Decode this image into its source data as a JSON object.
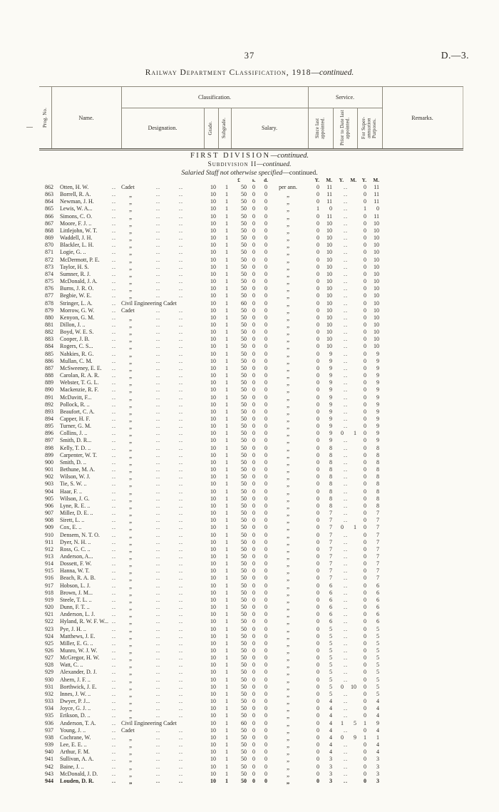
{
  "page": {
    "number": "37",
    "doc_ref": "D.—3."
  },
  "title": {
    "main": "Railway Department Classification, 1918",
    "dash": "—",
    "cont": "continued."
  },
  "table_header": {
    "prog_no": "Prog. No.",
    "name": "Name.",
    "classification": "Classification.",
    "service": "Service.",
    "designation": "Designation.",
    "grade": "Grade.",
    "subgrade": "Subgrade.",
    "salary": "Salary.",
    "since_last_appointed": "Since last appointed.",
    "prior_to_date_last_appointed": "Prior to Date last appointed.",
    "for_superannuation_purposes": "For Super- annuation Purposes.",
    "remarks": "Remarks."
  },
  "sections": {
    "division": "FIRST DIVISION",
    "division_cont": "—continued.",
    "subdivision": "Subdivision II",
    "subdivision_cont": "—continued.",
    "staff": "Salaried Staff not otherwise specified",
    "staff_cont": "—continued."
  },
  "units": {
    "pounds": "£",
    "shillings": "s.",
    "pence": "d.",
    "year": "Y.",
    "month": "M."
  },
  "leaders": "..",
  "rows": [
    [
      "862",
      "Otten, H. W.",
      "Cadet",
      "10",
      "1",
      "50",
      "0",
      "0",
      "per ann.",
      "0 11",
      "..",
      "0 11"
    ],
    [
      "863",
      "Borrell, R. A.",
      "„",
      "10",
      "1",
      "50",
      "0",
      "0",
      "„",
      "0 11",
      "..",
      "0 11"
    ],
    [
      "864",
      "Newman, J. H.",
      "„",
      "10",
      "1",
      "50",
      "0",
      "0",
      "„",
      "0 11",
      "..",
      "0 11"
    ],
    [
      "865",
      "Lewis, W. A...",
      "„",
      "10",
      "1",
      "50",
      "0",
      "0",
      "„",
      "1 0",
      "..",
      "1 0"
    ],
    [
      "866",
      "Simons, C. O.",
      "„",
      "10",
      "1",
      "50",
      "0",
      "0",
      "„",
      "0 11",
      "..",
      "0 11"
    ],
    [
      "867",
      "Moore, F. J. ..",
      "„",
      "10",
      "1",
      "50",
      "0",
      "0",
      "„",
      "0 10",
      "..",
      "0 10"
    ],
    [
      "868",
      "Littlejohn, W. T.",
      "„",
      "10",
      "1",
      "50",
      "0",
      "0",
      "„",
      "0 10",
      "..",
      "0 10"
    ],
    [
      "869",
      "Waddell, J. H.",
      "„",
      "10",
      "1",
      "50",
      "0",
      "0",
      "„",
      "0 10",
      "..",
      "0 10"
    ],
    [
      "870",
      "Blackler, L. H.",
      "„",
      "10",
      "1",
      "50",
      "0",
      "0",
      "„",
      "0 10",
      "..",
      "0 10"
    ],
    [
      "871",
      "Logie, G. ..",
      "„",
      "10",
      "1",
      "50",
      "0",
      "0",
      "„",
      "0 10",
      "..",
      "0 10"
    ],
    [
      "872",
      "McDermott, P. E.",
      "„",
      "10",
      "1",
      "50",
      "0",
      "0",
      "„",
      "0 10",
      "..",
      "0 10"
    ],
    [
      "873",
      "Taylor, H. S.",
      "„",
      "10",
      "1",
      "50",
      "0",
      "0",
      "„",
      "0 10",
      "..",
      "0 10"
    ],
    [
      "874",
      "Sumner, R. J.",
      "„",
      "10",
      "1",
      "50",
      "0",
      "0",
      "„",
      "0 10",
      "..",
      "0 10"
    ],
    [
      "875",
      "McDonald, J. A.",
      "„",
      "10",
      "1",
      "50",
      "0",
      "0",
      "„",
      "0 10",
      "..",
      "0 10"
    ],
    [
      "876",
      "Burns, J. R. O.",
      "„",
      "10",
      "1",
      "50",
      "0",
      "0",
      "„",
      "0 10",
      "..",
      "0 10"
    ],
    [
      "877",
      "Begbie, W. E.",
      "„",
      "10",
      "1",
      "50",
      "0",
      "0",
      "„",
      "0 10",
      "..",
      "0 10"
    ],
    [
      "878",
      "Stringer, L. A.",
      "Civil Engineering Cadet",
      "10",
      "1",
      "60",
      "0",
      "0",
      "„",
      "0 10",
      "..",
      "0 10"
    ],
    [
      "879",
      "Morrow, G. W.",
      "Cadet",
      "10",
      "1",
      "50",
      "0",
      "0",
      "„",
      "0 10",
      "..",
      "0 10"
    ],
    [
      "880",
      "Kenyon, G. M.",
      "„",
      "10",
      "1",
      "50",
      "0",
      "0",
      "„",
      "0 10",
      "..",
      "0 10"
    ],
    [
      "881",
      "Dillon, J. ..",
      "„",
      "10",
      "1",
      "50",
      "0",
      "0",
      "„",
      "0 10",
      "..",
      "0 10"
    ],
    [
      "882",
      "Boyd, W. E. S.",
      "„",
      "10",
      "1",
      "50",
      "0",
      "0",
      "„",
      "0 10",
      "..",
      "0 10"
    ],
    [
      "883",
      "Cooper, J. B.",
      "„",
      "10",
      "1",
      "50",
      "0",
      "0",
      "„",
      "0 10",
      "..",
      "0 10"
    ],
    [
      "884",
      "Rogers, C. S...",
      "„",
      "10",
      "1",
      "50",
      "0",
      "0",
      "„",
      "0 10",
      "..",
      "0 10"
    ],
    [
      "885",
      "Nahkies, R. G.",
      "„",
      "10",
      "1",
      "50",
      "0",
      "0",
      "„",
      "0 9",
      "..",
      "0 9"
    ],
    [
      "886",
      "Mullan, C. M.",
      "„",
      "10",
      "1",
      "50",
      "0",
      "0",
      "„",
      "0 9",
      "..",
      "0 9"
    ],
    [
      "887",
      "McSweeney, E. E.",
      "„",
      "10",
      "1",
      "50",
      "0",
      "0",
      "„",
      "0 9",
      "..",
      "0 9"
    ],
    [
      "888",
      "Carolan, R. A. R.",
      "„",
      "10",
      "1",
      "50",
      "0",
      "0",
      "„",
      "0 9",
      "..",
      "0 9"
    ],
    [
      "889",
      "Webster, T. G. L.",
      "„",
      "10",
      "1",
      "50",
      "0",
      "0",
      "„",
      "0 9",
      "..",
      "0 9"
    ],
    [
      "890",
      "Mackenzie, R. F.",
      "„",
      "10",
      "1",
      "50",
      "0",
      "0",
      "„",
      "0 9",
      "..",
      "0 9"
    ],
    [
      "891",
      "McDavitt, F...",
      "„",
      "10",
      "1",
      "50",
      "0",
      "0",
      "„",
      "0 9",
      "..",
      "0 9"
    ],
    [
      "892",
      "Pollock, R. ..",
      "„",
      "10",
      "1",
      "50",
      "0",
      "0",
      "„",
      "0 9",
      "..",
      "0 9"
    ],
    [
      "893",
      "Beaufort, C. A.",
      "„",
      "10",
      "1",
      "50",
      "0",
      "0",
      "„",
      "0 9",
      "..",
      "0 9"
    ],
    [
      "894",
      "Capper, H. F.",
      "„",
      "10",
      "1",
      "50",
      "0",
      "0",
      "„",
      "0 9",
      "..",
      "0 9"
    ],
    [
      "895",
      "Turner, G. M.",
      "„",
      "10",
      "1",
      "50",
      "0",
      "0",
      "„",
      "0 9",
      "..",
      "0 9"
    ],
    [
      "896",
      "Collins, J. ..",
      "„",
      "10",
      "1",
      "50",
      "0",
      "0",
      "„",
      "0 9",
      "0 1",
      "0 9"
    ],
    [
      "897",
      "Smith, D. R...",
      "„",
      "10",
      "1",
      "50",
      "0",
      "0",
      "„",
      "0 9",
      "..",
      "0 9"
    ],
    [
      "898",
      "Kelly, T. D. ..",
      "„",
      "10",
      "1",
      "50",
      "0",
      "0",
      "„",
      "0 8",
      "..",
      "0 8"
    ],
    [
      "899",
      "Carpenter, W. T.",
      "„",
      "10",
      "1",
      "50",
      "0",
      "0",
      "„",
      "0 8",
      "..",
      "0 8"
    ],
    [
      "900",
      "Smith, D. ..",
      "„",
      "10",
      "1",
      "50",
      "0",
      "0",
      "„",
      "0 8",
      "..",
      "0 8"
    ],
    [
      "901",
      "Bethune, M. A.",
      "„",
      "10",
      "1",
      "50",
      "0",
      "0",
      "„",
      "0 8",
      "..",
      "0 8"
    ],
    [
      "902",
      "Wilson, W. J.",
      "„",
      "10",
      "1",
      "50",
      "0",
      "0",
      "„",
      "0 8",
      "..",
      "0 8"
    ],
    [
      "903",
      "Tie, S. W. ..",
      "„",
      "10",
      "1",
      "50",
      "0",
      "0",
      "„",
      "0 8",
      "..",
      "0 8"
    ],
    [
      "904",
      "Haar, F. ..",
      "„",
      "10",
      "1",
      "50",
      "0",
      "0",
      "„",
      "0 8",
      "..",
      "0 8"
    ],
    [
      "905",
      "Wilson, J. G.",
      "„",
      "10",
      "1",
      "50",
      "0",
      "0",
      "„",
      "0 8",
      "..",
      "0 8"
    ],
    [
      "906",
      "Lyne, R. E. ..",
      "„",
      "10",
      "1",
      "50",
      "0",
      "0",
      "„",
      "0 8",
      "..",
      "0 8"
    ],
    [
      "907",
      "Miller, D. E. ..",
      "„",
      "10",
      "1",
      "50",
      "0",
      "0",
      "„",
      "0 7",
      "..",
      "0 7"
    ],
    [
      "908",
      "Sirett, L. ..",
      "„",
      "10",
      "1",
      "50",
      "0",
      "0",
      "„",
      "0 7",
      "..",
      "0 7"
    ],
    [
      "909",
      "Cox, E. ..",
      "„",
      "10",
      "1",
      "50",
      "0",
      "0",
      "„",
      "0 7",
      "0 1",
      "0 7"
    ],
    [
      "910",
      "Densem, N. T. O.",
      "„",
      "10",
      "1",
      "50",
      "0",
      "0",
      "„",
      "0 7",
      "..",
      "0 7"
    ],
    [
      "911",
      "Dyer, N. H. ..",
      "„",
      "10",
      "1",
      "50",
      "0",
      "0",
      "„",
      "0 7",
      "..",
      "0 7"
    ],
    [
      "912",
      "Ross, G. C. ..",
      "„",
      "10",
      "1",
      "50",
      "0",
      "0",
      "„",
      "0 7",
      "..",
      "0 7"
    ],
    [
      "913",
      "Anderson, A...",
      "„",
      "10",
      "1",
      "50",
      "0",
      "0",
      "„",
      "0 7",
      "..",
      "0 7"
    ],
    [
      "914",
      "Dossett, F. W.",
      "„",
      "10",
      "1",
      "50",
      "0",
      "0",
      "„",
      "0 7",
      "..",
      "0 7"
    ],
    [
      "915",
      "Hanna, W. T.",
      "„",
      "10",
      "1",
      "50",
      "0",
      "0",
      "„",
      "0 7",
      "..",
      "0 7"
    ],
    [
      "916",
      "Beach, R. A. B.",
      "„",
      "10",
      "1",
      "50",
      "0",
      "0",
      "„",
      "0 7",
      "..",
      "0 7"
    ],
    [
      "917",
      "Hobson, L. J.",
      "„",
      "10",
      "1",
      "50",
      "0",
      "0",
      "„",
      "0 6",
      "..",
      "0 6"
    ],
    [
      "918",
      "Brown, J. M...",
      "„",
      "10",
      "1",
      "50",
      "0",
      "0",
      "„",
      "0 6",
      "..",
      "0 6"
    ],
    [
      "919",
      "Steele, T. L. ..",
      "„",
      "10",
      "1",
      "50",
      "0",
      "0",
      "„",
      "0 6",
      "..",
      "0 6"
    ],
    [
      "920",
      "Dunn, F. T. ..",
      "„",
      "10",
      "1",
      "50",
      "0",
      "0",
      "„",
      "0 6",
      "..",
      "0 6"
    ],
    [
      "921",
      "Anderson, L. J.",
      "„",
      "10",
      "1",
      "50",
      "0",
      "0",
      "„",
      "0 6",
      "..",
      "0 6"
    ],
    [
      "922",
      "Hyland, R. W. F. W...",
      "„",
      "10",
      "1",
      "50",
      "0",
      "0",
      "„",
      "0 6",
      "..",
      "0 6"
    ],
    [
      "923",
      "Pye, J. H. ..",
      "„",
      "10",
      "1",
      "50",
      "0",
      "0",
      "„",
      "0 5",
      "..",
      "0 5"
    ],
    [
      "924",
      "Matthews, J. E.",
      "„",
      "10",
      "1",
      "50",
      "0",
      "0",
      "„",
      "0 5",
      "..",
      "0 5"
    ],
    [
      "925",
      "Miller, E. G. ..",
      "„",
      "10",
      "1",
      "50",
      "0",
      "0",
      "„",
      "0 5",
      "..",
      "0 5"
    ],
    [
      "926",
      "Munro, W. J. W.",
      "„",
      "10",
      "1",
      "50",
      "0",
      "0",
      "„",
      "0 5",
      "..",
      "0 5"
    ],
    [
      "927",
      "McGregor, H. W.",
      "„",
      "10",
      "1",
      "50",
      "0",
      "0",
      "„",
      "0 5",
      "..",
      "0 5"
    ],
    [
      "928",
      "Watt, C. ..",
      "„",
      "10",
      "1",
      "50",
      "0",
      "0",
      "„",
      "0 5",
      "..",
      "0 5"
    ],
    [
      "929",
      "Alexander, D. J.",
      "„",
      "10",
      "1",
      "50",
      "0",
      "0",
      "„",
      "0 5",
      "..",
      "0 5"
    ],
    [
      "930",
      "Ahern, J. F. ..",
      "„",
      "10",
      "1",
      "50",
      "0",
      "0",
      "„",
      "0 5",
      "..",
      "0 5"
    ],
    [
      "931",
      "Borthwick, J. E.",
      "„",
      "10",
      "1",
      "50",
      "0",
      "0",
      "„",
      "0 5",
      "0 10",
      "0 5"
    ],
    [
      "932",
      "Innes, J. W. ..",
      "„",
      "10",
      "1",
      "50",
      "0",
      "0",
      "„",
      "0 5",
      "..",
      "0 5"
    ],
    [
      "933",
      "Dwyer, P. J...",
      "„",
      "10",
      "1",
      "50",
      "0",
      "0",
      "„",
      "0 4",
      "..",
      "0 4"
    ],
    [
      "934",
      "Joyce, G. J. ..",
      "„",
      "10",
      "1",
      "50",
      "0",
      "0",
      "„",
      "0 4",
      "..",
      "0 4"
    ],
    [
      "935",
      "Erikson, D. ..",
      "„",
      "10",
      "1",
      "50",
      "0",
      "0",
      "„",
      "0 4",
      "..",
      "0 4"
    ],
    [
      "936",
      "Anderson, T. A.",
      "Civil Engineering Cadet",
      "10",
      "1",
      "60",
      "0",
      "0",
      "„",
      "0 4",
      "1 5",
      "1 9"
    ],
    [
      "937",
      "Young, J. ..",
      "Cadet",
      "10",
      "1",
      "50",
      "0",
      "0",
      "„",
      "0 4",
      "..",
      "0 4"
    ],
    [
      "938",
      "Cochrane, W.",
      "„",
      "10",
      "1",
      "50",
      "0",
      "0",
      "„",
      "0 4",
      "0 9",
      "1 1"
    ],
    [
      "939",
      "Lee, E. E. ..",
      "„",
      "10",
      "1",
      "50",
      "0",
      "0",
      "„",
      "0 4",
      "..",
      "0 4"
    ],
    [
      "940",
      "Arthur, F. M.",
      "„",
      "10",
      "1",
      "50",
      "0",
      "0",
      "„",
      "0 4",
      "..",
      "0 4"
    ],
    [
      "941",
      "Sullivan, A. A.",
      "„",
      "10",
      "1",
      "50",
      "0",
      "0",
      "„",
      "0 3",
      "..",
      "0 3"
    ],
    [
      "942",
      "Baine, J. ..",
      "„",
      "10",
      "1",
      "50",
      "0",
      "0",
      "„",
      "0 3",
      "..",
      "0 3"
    ],
    [
      "943",
      "McDonald, J. D.",
      "„",
      "10",
      "1",
      "50",
      "0",
      "0",
      "„",
      "0 3",
      "..",
      "0 3"
    ],
    [
      "944",
      "Louden, D. R.",
      "„",
      "10",
      "1",
      "50",
      "0",
      "0",
      "„",
      "0 3",
      "..",
      "0 3"
    ]
  ]
}
